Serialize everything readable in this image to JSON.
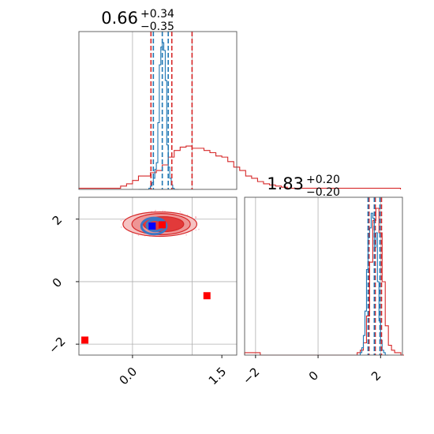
{
  "chart_data": {
    "type": "corner",
    "panels": [
      {
        "id": "hist_p0",
        "type": "histogram",
        "title": {
          "value": "0.66",
          "upper": "+0.34",
          "lower": "−0.35"
        },
        "xlim": [
          -0.9,
          1.75
        ],
        "grid_x": [
          0.0,
          1.0
        ],
        "quantile_lines": {
          "red": [
            0.31,
            0.66,
            1.0
          ],
          "blue": [
            0.35,
            0.5,
            0.6
          ]
        },
        "series": [
          {
            "name": "",
            "color": "#d62728",
            "bin_start": -0.9,
            "bin_width": 0.1,
            "counts": [
              1,
              1,
              1,
              1,
              1,
              1,
              1,
              3,
              5,
              8,
              12,
              12,
              15,
              17,
              22,
              29,
              35,
              38,
              39,
              37,
              37,
              35,
              33,
              30,
              29,
              25,
              20,
              17,
              12,
              10,
              7,
              5,
              4,
              3,
              2,
              1,
              1,
              1,
              1,
              1,
              1,
              1,
              1,
              1,
              1,
              1,
              1,
              1,
              1,
              1,
              1,
              1,
              1,
              1
            ]
          },
          {
            "name": "",
            "color": "#1f77b4",
            "bin_start": 0.1,
            "bin_width": 0.025,
            "counts": [
              0,
              0,
              0,
              0,
              0,
              0,
              0,
              1,
              3,
              6,
              10,
              18,
              24,
              60,
              112,
              128,
              132,
              125,
              98,
              40,
              20,
              10,
              4,
              1,
              0,
              0,
              0
            ]
          }
        ]
      },
      {
        "id": "scatter_p0_p1",
        "type": "scatter-contour",
        "xlim": [
          -0.9,
          1.75
        ],
        "ylim": [
          -2.35,
          2.7
        ],
        "grid_x": [
          0.0,
          1.0
        ],
        "grid_y": [
          -2,
          0,
          2
        ],
        "xticks": [
          0.0,
          1.5
        ],
        "yticks": [
          -2,
          0,
          2
        ],
        "xtick_labels": [
          "0.0",
          "1.5"
        ],
        "ytick_labels": [
          "−2",
          "0",
          "2"
        ],
        "contours": {
          "red": [
            {
              "cx": 0.46,
              "cy": 1.84,
              "rx": 0.62,
              "ry": 0.39,
              "fill": "#f6c2c2"
            },
            {
              "cx": 0.48,
              "cy": 1.84,
              "rx": 0.49,
              "ry": 0.34,
              "fill": "#ee9595"
            },
            {
              "cx": 0.52,
              "cy": 1.84,
              "rx": 0.34,
              "ry": 0.24,
              "fill": "#e23a3a"
            }
          ],
          "blue": [
            {
              "cx": 0.36,
              "cy": 1.78,
              "rx": 0.21,
              "ry": 0.26
            },
            {
              "cx": 0.38,
              "cy": 1.8,
              "rx": 0.14,
              "ry": 0.18
            }
          ]
        },
        "markers": [
          {
            "color": "#ff0000",
            "x": -0.8,
            "y": -1.87,
            "shape": "square"
          },
          {
            "color": "#ff0000",
            "x": 1.25,
            "y": -0.45,
            "shape": "square"
          },
          {
            "color": "#ff0000",
            "x": 0.5,
            "y": 1.82,
            "shape": "square"
          },
          {
            "color": "#0000ff",
            "x": 0.33,
            "y": 1.78,
            "shape": "square"
          }
        ]
      },
      {
        "id": "hist_p1",
        "type": "histogram",
        "title": {
          "value": "1.83",
          "upper": "+0.20",
          "lower": "−0.20"
        },
        "xlim": [
          -2.35,
          2.7
        ],
        "grid_x": [
          -2,
          0,
          2
        ],
        "xticks": [
          -2,
          0,
          2
        ],
        "xtick_labels": [
          "−2",
          "0",
          "2"
        ],
        "quantile_lines": {
          "red": [
            1.63,
            1.83,
            2.03
          ],
          "blue": [
            1.6,
            1.8,
            1.98
          ]
        },
        "series": [
          {
            "name": "",
            "color": "#d62728",
            "bin_start": -2.35,
            "bin_width": 0.1,
            "counts": [
              1,
              1,
              1,
              1,
              1,
              0,
              0,
              0,
              0,
              0,
              0,
              0,
              0,
              0,
              0,
              0,
              0,
              0,
              0,
              0,
              0,
              0,
              0,
              0,
              0,
              0,
              0,
              0,
              0,
              0,
              0,
              0,
              0,
              0,
              0,
              0,
              1,
              2,
              5,
              16,
              38,
              55,
              60,
              50,
              30,
              12,
              4,
              2,
              1,
              1,
              0
            ]
          },
          {
            "name": "",
            "color": "#1f77b4",
            "bin_start": 1.2,
            "bin_width": 0.05,
            "counts": [
              0,
              0,
              0,
              1,
              3,
              8,
              18,
              35,
              48,
              52,
              58,
              56,
              44,
              50,
              30,
              14,
              6,
              2,
              1,
              0,
              0
            ]
          }
        ]
      }
    ]
  }
}
